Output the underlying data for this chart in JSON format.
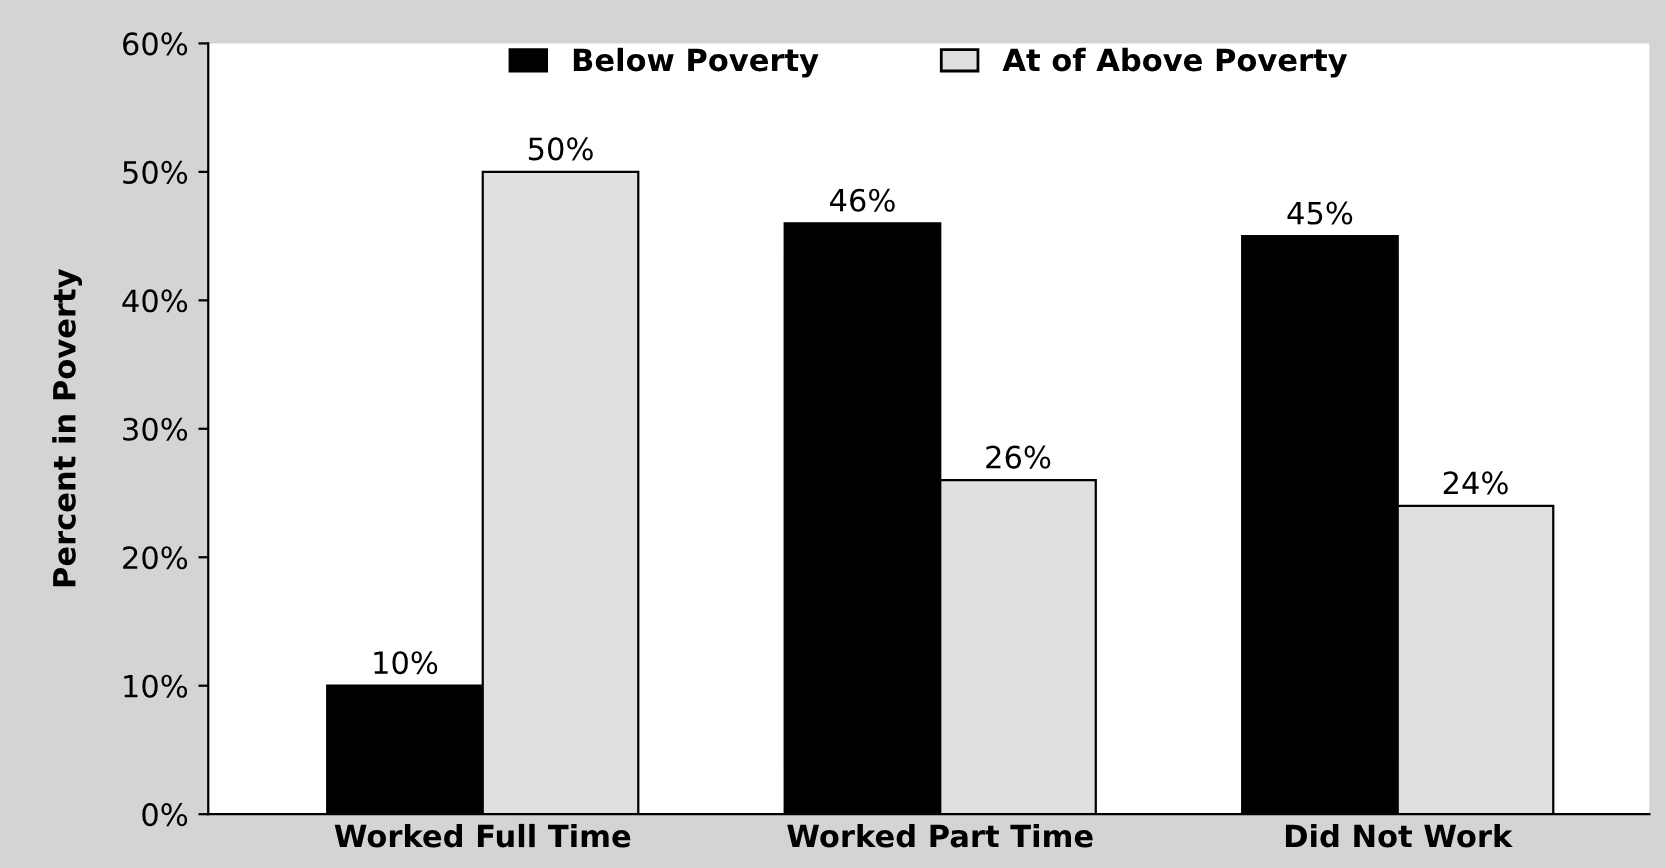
{
  "chart_data": {
    "type": "bar",
    "ylabel": "Percent in Poverty",
    "categories": [
      "Worked Full Time",
      "Worked Part Time",
      "Did Not Work"
    ],
    "series": [
      {
        "name": "Below Poverty",
        "color": "#000000",
        "values": [
          10,
          46,
          45
        ],
        "value_labels": [
          "10%",
          "46%",
          "45%"
        ]
      },
      {
        "name": "At of Above Poverty",
        "color": "#e0e0e2",
        "values": [
          50,
          26,
          24
        ],
        "value_labels": [
          "50%",
          "26%",
          "24%"
        ]
      }
    ],
    "ylim": [
      0,
      60
    ],
    "yticks": [
      {
        "value": 0,
        "label": "0%"
      },
      {
        "value": 10,
        "label": "10%"
      },
      {
        "value": 20,
        "label": "20%"
      },
      {
        "value": 30,
        "label": "30%"
      },
      {
        "value": 40,
        "label": "40%"
      },
      {
        "value": 50,
        "label": "50%"
      },
      {
        "value": 60,
        "label": "60%"
      }
    ],
    "grid": false,
    "legend": "top"
  }
}
